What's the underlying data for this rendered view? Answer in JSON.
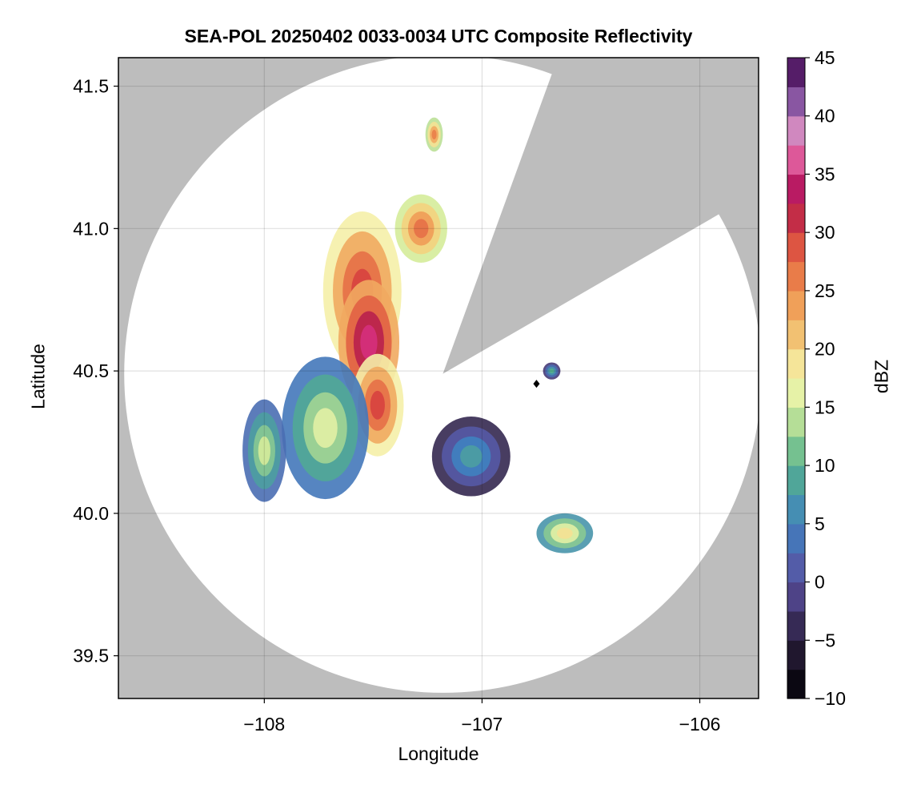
{
  "chart_data": {
    "type": "heatmap",
    "title": "SEA-POL 20250402 0033-0034 UTC Composite Reflectivity",
    "xlabel": "Longitude",
    "ylabel": "Latitude",
    "xlim": [
      -108.67,
      -105.73
    ],
    "ylim": [
      39.35,
      41.6
    ],
    "x_ticks": [
      -108,
      -107,
      -106
    ],
    "x_tick_labels": [
      "−108",
      "−107",
      "−106"
    ],
    "y_ticks": [
      39.5,
      40.0,
      40.5,
      41.0,
      41.5
    ],
    "y_tick_labels": [
      "39.5",
      "40.0",
      "40.5",
      "41.0",
      "41.5"
    ],
    "grid": true,
    "background_color": "#bdbdbd",
    "radar": {
      "center_lon": -107.18,
      "center_lat": 40.49,
      "max_range_deg_lat": 1.12,
      "blocked_sector_azimuth_deg": [
        20,
        60
      ],
      "marker_lon": -106.75,
      "marker_lat": 40.455
    },
    "colorbar": {
      "label": "dBZ",
      "min": -10,
      "max": 45,
      "step": 2.5,
      "ticks": [
        -10,
        -5,
        0,
        5,
        10,
        15,
        20,
        25,
        30,
        35,
        40,
        45
      ],
      "tick_labels": [
        "−10",
        "−5",
        "0",
        "5",
        "10",
        "15",
        "20",
        "25",
        "30",
        "35",
        "40",
        "45"
      ],
      "colormap": "spectral-extended"
    },
    "echoes": [
      {
        "name": "main-line-north",
        "lon": -107.55,
        "lat": 40.78,
        "rx": 0.18,
        "ry": 0.28,
        "dbz": 30
      },
      {
        "name": "main-line-core",
        "lon": -107.52,
        "lat": 40.6,
        "rx": 0.14,
        "ry": 0.22,
        "dbz": 35
      },
      {
        "name": "main-line-south",
        "lon": -107.48,
        "lat": 40.38,
        "rx": 0.12,
        "ry": 0.18,
        "dbz": 30
      },
      {
        "name": "west-broad-area",
        "lon": -107.72,
        "lat": 40.3,
        "rx": 0.2,
        "ry": 0.25,
        "dbz": 16
      },
      {
        "name": "far-west-cell",
        "lon": -108.0,
        "lat": 40.22,
        "rx": 0.1,
        "ry": 0.18,
        "dbz": 15
      },
      {
        "name": "north-cells",
        "lon": -107.28,
        "lat": 41.0,
        "rx": 0.12,
        "ry": 0.12,
        "dbz": 27
      },
      {
        "name": "north-isolated",
        "lon": -107.22,
        "lat": 41.33,
        "rx": 0.04,
        "ry": 0.06,
        "dbz": 26
      },
      {
        "name": "east-light-area",
        "lon": -107.05,
        "lat": 40.2,
        "rx": 0.18,
        "ry": 0.14,
        "dbz": 8
      },
      {
        "name": "southeast-cell",
        "lon": -106.62,
        "lat": 39.93,
        "rx": 0.13,
        "ry": 0.07,
        "dbz": 19
      },
      {
        "name": "east-small-cell",
        "lon": -106.68,
        "lat": 40.5,
        "rx": 0.04,
        "ry": 0.03,
        "dbz": 10
      }
    ]
  }
}
